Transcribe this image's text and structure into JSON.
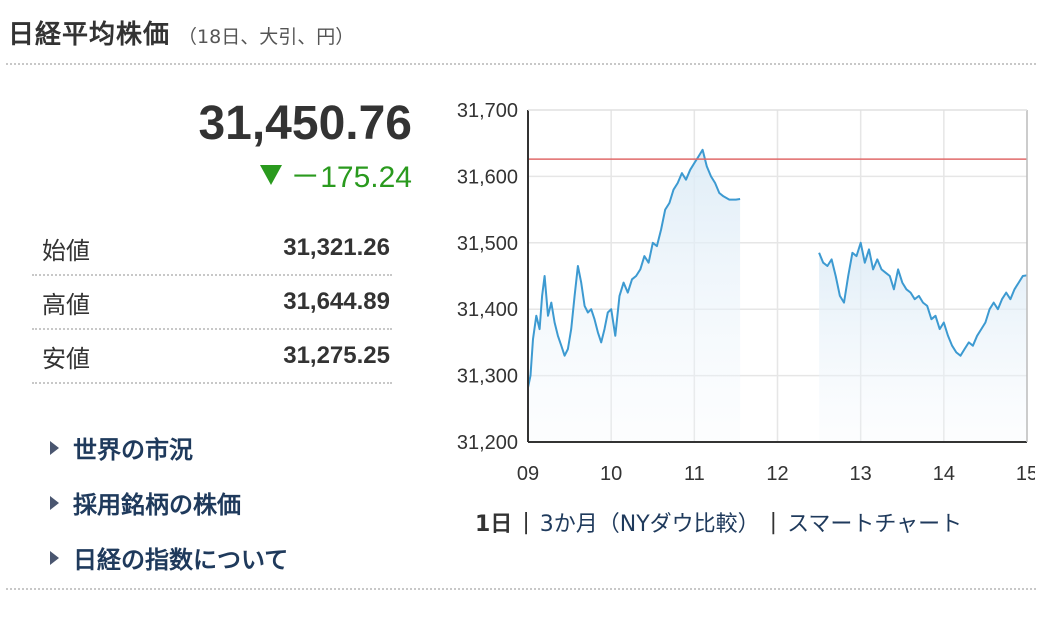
{
  "header": {
    "title": "日経平均株価",
    "subtitle": "（18日、大引、円）"
  },
  "quote": {
    "price": "31,450.76",
    "change": "－175.24",
    "change_color": "#2a9a1e"
  },
  "stats": [
    {
      "label": "始値",
      "value": "31,321.26"
    },
    {
      "label": "高値",
      "value": "31,644.89"
    },
    {
      "label": "安値",
      "value": "31,275.25"
    }
  ],
  "links": [
    {
      "label": "世界の市況"
    },
    {
      "label": "採用銘柄の株価"
    },
    {
      "label": "日経の指数について"
    }
  ],
  "ranges": [
    {
      "label": "1日",
      "active": true
    },
    {
      "label": "3か月（NYダウ比較）",
      "active": false
    },
    {
      "label": "スマートチャート",
      "active": false
    }
  ],
  "chart_data": {
    "type": "line",
    "ylim": [
      31200,
      31700
    ],
    "yticks": [
      "31,700",
      "31,600",
      "31,500",
      "31,400",
      "31,300",
      "31,200"
    ],
    "xlim": [
      9,
      15
    ],
    "xticks": [
      "09",
      "10",
      "11",
      "12",
      "13",
      "14",
      "15"
    ],
    "reference_line": 31626,
    "line_color": "#3d9ad1",
    "reference_color": "#e06a6a",
    "grid": true,
    "series": [
      {
        "values": [
          [
            9.0,
            31282
          ],
          [
            9.03,
            31300
          ],
          [
            9.06,
            31355
          ],
          [
            9.1,
            31390
          ],
          [
            9.14,
            31370
          ],
          [
            9.17,
            31420
          ],
          [
            9.2,
            31450
          ],
          [
            9.24,
            31390
          ],
          [
            9.28,
            31410
          ],
          [
            9.32,
            31380
          ],
          [
            9.36,
            31360
          ],
          [
            9.4,
            31345
          ],
          [
            9.44,
            31330
          ],
          [
            9.48,
            31340
          ],
          [
            9.52,
            31370
          ],
          [
            9.56,
            31420
          ],
          [
            9.6,
            31465
          ],
          [
            9.64,
            31440
          ],
          [
            9.68,
            31405
          ],
          [
            9.72,
            31395
          ],
          [
            9.76,
            31400
          ],
          [
            9.8,
            31385
          ],
          [
            9.84,
            31365
          ],
          [
            9.88,
            31350
          ],
          [
            9.92,
            31370
          ],
          [
            9.96,
            31395
          ],
          [
            10.0,
            31400
          ],
          [
            10.05,
            31360
          ],
          [
            10.1,
            31420
          ],
          [
            10.15,
            31440
          ],
          [
            10.2,
            31425
          ],
          [
            10.25,
            31445
          ],
          [
            10.3,
            31450
          ],
          [
            10.35,
            31460
          ],
          [
            10.4,
            31480
          ],
          [
            10.45,
            31470
          ],
          [
            10.5,
            31500
          ],
          [
            10.55,
            31495
          ],
          [
            10.6,
            31520
          ],
          [
            10.65,
            31550
          ],
          [
            10.7,
            31560
          ],
          [
            10.75,
            31580
          ],
          [
            10.8,
            31590
          ],
          [
            10.85,
            31605
          ],
          [
            10.9,
            31595
          ],
          [
            10.95,
            31610
          ],
          [
            11.0,
            31620
          ],
          [
            11.05,
            31630
          ],
          [
            11.1,
            31640
          ],
          [
            11.15,
            31615
          ],
          [
            11.2,
            31600
          ],
          [
            11.25,
            31590
          ],
          [
            11.3,
            31575
          ],
          [
            11.35,
            31570
          ],
          [
            11.42,
            31565
          ],
          [
            11.5,
            31565
          ],
          [
            11.55,
            31566
          ]
        ]
      },
      {
        "values": [
          [
            12.5,
            31485
          ],
          [
            12.55,
            31470
          ],
          [
            12.6,
            31465
          ],
          [
            12.65,
            31475
          ],
          [
            12.7,
            31450
          ],
          [
            12.75,
            31420
          ],
          [
            12.8,
            31410
          ],
          [
            12.85,
            31450
          ],
          [
            12.9,
            31485
          ],
          [
            12.95,
            31480
          ],
          [
            13.0,
            31500
          ],
          [
            13.05,
            31470
          ],
          [
            13.1,
            31490
          ],
          [
            13.15,
            31460
          ],
          [
            13.2,
            31475
          ],
          [
            13.25,
            31460
          ],
          [
            13.3,
            31455
          ],
          [
            13.35,
            31450
          ],
          [
            13.4,
            31430
          ],
          [
            13.45,
            31460
          ],
          [
            13.5,
            31440
          ],
          [
            13.55,
            31430
          ],
          [
            13.6,
            31425
          ],
          [
            13.65,
            31415
          ],
          [
            13.7,
            31420
          ],
          [
            13.75,
            31410
          ],
          [
            13.8,
            31405
          ],
          [
            13.85,
            31385
          ],
          [
            13.9,
            31390
          ],
          [
            13.95,
            31370
          ],
          [
            14.0,
            31380
          ],
          [
            14.05,
            31360
          ],
          [
            14.1,
            31345
          ],
          [
            14.15,
            31335
          ],
          [
            14.2,
            31330
          ],
          [
            14.25,
            31340
          ],
          [
            14.3,
            31350
          ],
          [
            14.35,
            31345
          ],
          [
            14.4,
            31360
          ],
          [
            14.45,
            31370
          ],
          [
            14.5,
            31380
          ],
          [
            14.55,
            31400
          ],
          [
            14.6,
            31410
          ],
          [
            14.65,
            31400
          ],
          [
            14.7,
            31415
          ],
          [
            14.75,
            31425
          ],
          [
            14.8,
            31415
          ],
          [
            14.85,
            31430
          ],
          [
            14.9,
            31440
          ],
          [
            14.95,
            31450
          ],
          [
            15.0,
            31451
          ]
        ]
      }
    ]
  }
}
